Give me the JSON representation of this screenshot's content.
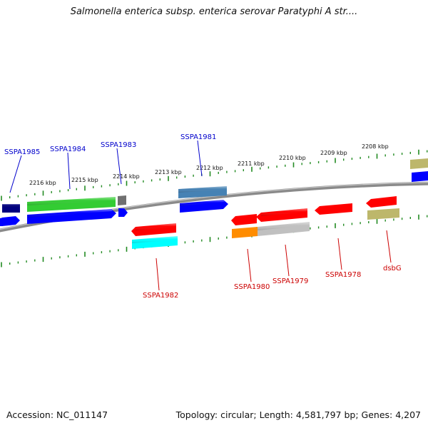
{
  "title": "Salmonella enterica subsp. enterica serovar Paratyphi A str....",
  "footer": {
    "accession": "Accession: NC_011147",
    "summary": "Topology: circular; Length: 4,581,797 bp; Genes: 4,207"
  },
  "colors": {
    "tick": "#228b22",
    "backbone": "#808080",
    "label_top": "#0000cc",
    "label_bottom": "#cc0000"
  },
  "scale_labels": [
    "2216 kbp",
    "2215 kbp",
    "2214 kbp",
    "2213 kbp",
    "2212 kbp",
    "2211 kbp",
    "2210 kbp",
    "2209 kbp",
    "2208 kbp"
  ],
  "gene_labels_top": [
    "SSPA1985",
    "SSPA1984",
    "SSPA1983",
    "SSPA1981"
  ],
  "gene_labels_bottom": [
    "SSPA1982",
    "SSPA1980",
    "SSPA1979",
    "SSPA1978",
    "dsbG"
  ],
  "feature_colors": [
    "#000080",
    "#0000ff",
    "#33cc33",
    "#808080",
    "#4682b4",
    "#ff0000",
    "#00ffff",
    "#ff8c00",
    "#c0c0c0",
    "#bdb76b"
  ]
}
